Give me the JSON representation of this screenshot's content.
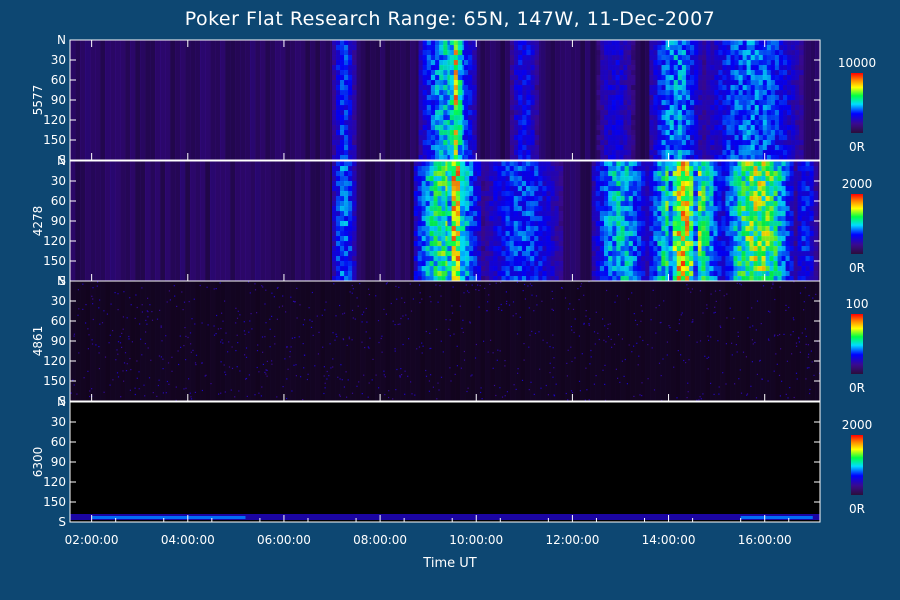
{
  "chart_data": {
    "type": "heatmap",
    "title": "Poker Flat Research Range: 65N, 147W, 11-Dec-2007",
    "xlabel": "Time UT",
    "x_range_hours": [
      1.55,
      17.15
    ],
    "x_ticks": [
      "02:00:00",
      "04:00:00",
      "06:00:00",
      "08:00:00",
      "10:00:00",
      "12:00:00",
      "14:00:00",
      "16:00:00"
    ],
    "x_tick_hours": [
      2,
      4,
      6,
      8,
      10,
      12,
      14,
      16
    ],
    "y_tick_labels": [
      "N",
      "30",
      "60",
      "90",
      "120",
      "150",
      "S"
    ],
    "y_tick_values": [
      0,
      30,
      60,
      90,
      120,
      150,
      180
    ],
    "panels": [
      {
        "name": "5577",
        "colorbar_max": "10000",
        "colorbar_min": "0R",
        "background_level": 0.12,
        "events": [
          {
            "t_start": 7.0,
            "t_end": 7.5,
            "intensity": 0.42
          },
          {
            "t_start": 8.8,
            "t_end": 10.0,
            "intensity": 0.6
          },
          {
            "t_start": 9.45,
            "t_end": 9.7,
            "intensity": 0.95
          },
          {
            "t_start": 10.7,
            "t_end": 11.3,
            "intensity": 0.38
          },
          {
            "t_start": 12.5,
            "t_end": 13.3,
            "intensity": 0.32
          },
          {
            "t_start": 13.6,
            "t_end": 14.7,
            "intensity": 0.55
          },
          {
            "t_start": 14.7,
            "t_end": 16.8,
            "intensity": 0.5
          }
        ]
      },
      {
        "name": "4278",
        "colorbar_max": "2000",
        "colorbar_min": "0R",
        "background_level": 0.12,
        "events": [
          {
            "t_start": 7.0,
            "t_end": 7.5,
            "intensity": 0.5
          },
          {
            "t_start": 8.7,
            "t_end": 10.1,
            "intensity": 0.75
          },
          {
            "t_start": 9.4,
            "t_end": 9.75,
            "intensity": 1.0
          },
          {
            "t_start": 10.1,
            "t_end": 11.8,
            "intensity": 0.45
          },
          {
            "t_start": 12.4,
            "t_end": 13.6,
            "intensity": 0.6
          },
          {
            "t_start": 13.6,
            "t_end": 15.1,
            "intensity": 0.9
          },
          {
            "t_start": 14.0,
            "t_end": 14.6,
            "intensity": 1.0
          },
          {
            "t_start": 15.1,
            "t_end": 16.6,
            "intensity": 0.85
          },
          {
            "t_start": 16.6,
            "t_end": 17.1,
            "intensity": 0.4
          }
        ]
      },
      {
        "name": "4861",
        "colorbar_max": "100",
        "colorbar_min": "0R",
        "background_level": 0.02,
        "events": []
      },
      {
        "name": "6300",
        "colorbar_max": "2000",
        "colorbar_min": "0R",
        "background_level": 0.0,
        "events": []
      }
    ]
  }
}
